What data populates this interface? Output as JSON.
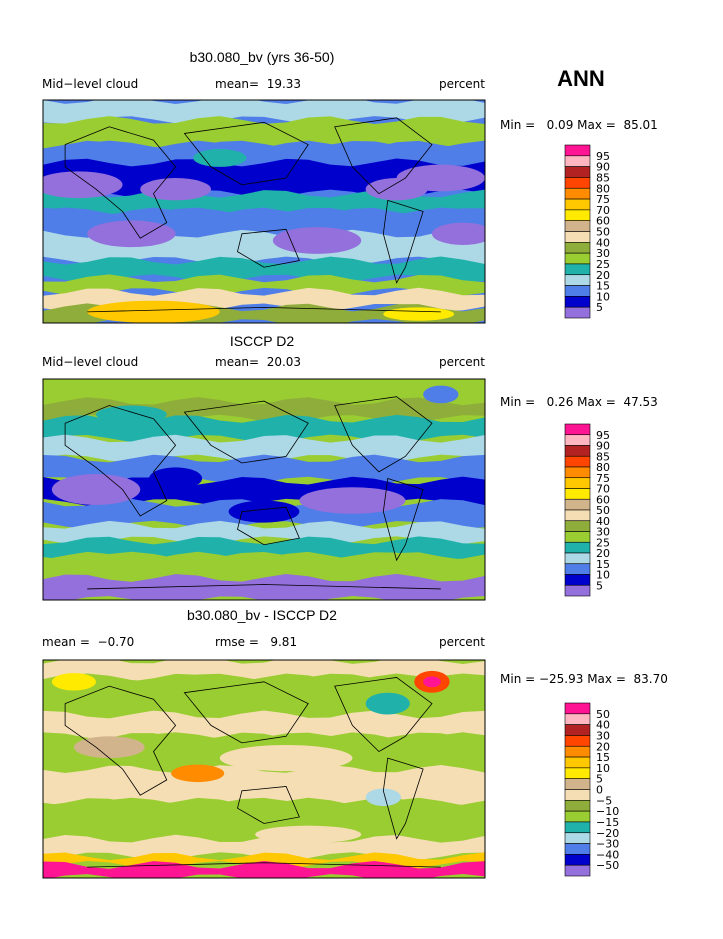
{
  "header": {
    "season": "ANN"
  },
  "panels": [
    {
      "title": "b30.080_bv (yrs 36-50)",
      "left": "Mid−level cloud",
      "center": "mean=  19.33",
      "right": "percent",
      "minmax": "Min =   0.09 Max =  85.01",
      "colorbar": {
        "labels": [
          "95",
          "90",
          "85",
          "80",
          "75",
          "70",
          "60",
          "50",
          "40",
          "30",
          "25",
          "20",
          "15",
          "10",
          "5"
        ]
      }
    },
    {
      "title": "ISCCP D2",
      "left": "Mid−level cloud",
      "center": "mean=  20.03",
      "right": "percent",
      "minmax": "Min =   0.26 Max =  47.53",
      "colorbar": {
        "labels": [
          "95",
          "90",
          "85",
          "80",
          "75",
          "70",
          "60",
          "50",
          "40",
          "30",
          "25",
          "20",
          "15",
          "10",
          "5"
        ]
      }
    },
    {
      "title": "b30.080_bv - ISCCP D2",
      "left": "mean =  −0.70",
      "center": "rmse =   9.81",
      "right": "percent",
      "minmax": "Min = −25.93 Max =  83.70",
      "colorbar": {
        "labels": [
          "50",
          "40",
          "30",
          "20",
          "15",
          "10",
          "5",
          "0",
          "−5",
          "−10",
          "−15",
          "−20",
          "−30",
          "−40",
          "−50"
        ]
      }
    }
  ],
  "colors": [
    "#ff1493",
    "#ffb6c1",
    "#b22222",
    "#ff4500",
    "#ff8c00",
    "#ffc800",
    "#ffea00",
    "#d2b48c",
    "#f5deb3",
    "#8fad3a",
    "#9acd32",
    "#20b2aa",
    "#add8e6",
    "#4f7ee8",
    "#0000cd",
    "#9370db"
  ]
}
